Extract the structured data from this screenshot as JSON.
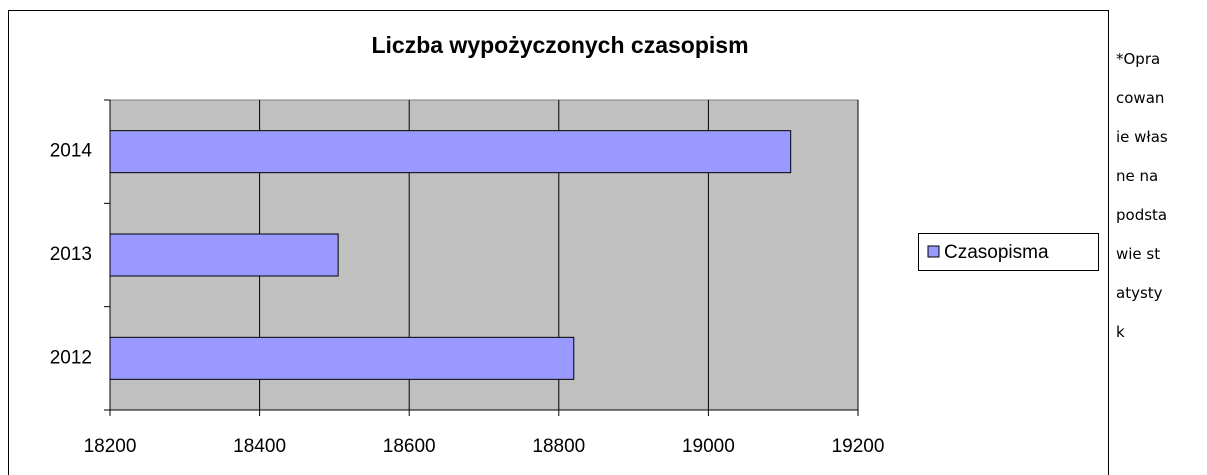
{
  "chart_data": {
    "type": "bar",
    "orientation": "horizontal",
    "title": "Liczba wypożyczonych czasopism",
    "categories": [
      "2012",
      "2013",
      "2014"
    ],
    "series": [
      {
        "name": "Czasopisma",
        "color": "#9999ff",
        "values": [
          18820,
          18505,
          19110
        ]
      }
    ],
    "xlim": [
      18200,
      19200
    ],
    "xticks": [
      18200,
      18400,
      18600,
      18800,
      19000,
      19200
    ],
    "grid": true,
    "legend": "right"
  },
  "note": "*Opracowanie własne na podstawie statystyk"
}
